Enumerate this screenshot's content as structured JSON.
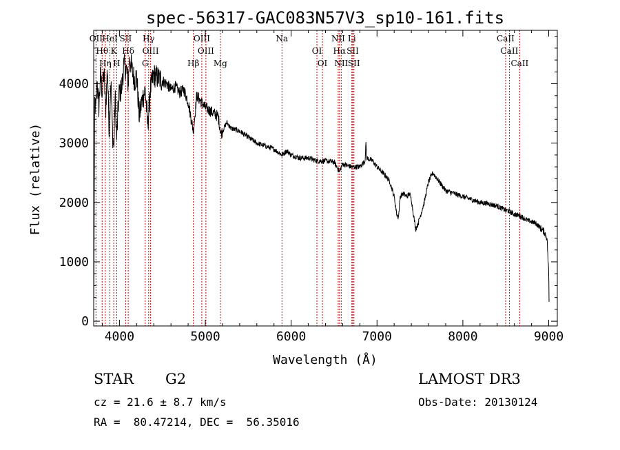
{
  "chart_data": {
    "type": "line",
    "title": "spec-56317-GAC083N57V3_sp10-161.fits",
    "xlabel": "Wavelength (Å)",
    "ylabel": "Flux (relative)",
    "xlim": [
      3700,
      9100
    ],
    "ylim": [
      -80,
      4900
    ],
    "xticks": [
      4000,
      5000,
      6000,
      7000,
      8000,
      9000
    ],
    "yticks": [
      0,
      1000,
      2000,
      3000,
      4000
    ],
    "grid": false,
    "series": [
      {
        "name": "spectrum",
        "anchors": [
          [
            3700,
            200
          ],
          [
            3705,
            1350
          ],
          [
            3712,
            3700
          ],
          [
            3725,
            3550
          ],
          [
            3740,
            4050
          ],
          [
            3760,
            3600
          ],
          [
            3780,
            4150
          ],
          [
            3800,
            3850
          ],
          [
            3820,
            4200
          ],
          [
            3840,
            3550
          ],
          [
            3860,
            4300
          ],
          [
            3880,
            3200
          ],
          [
            3900,
            4100
          ],
          [
            3920,
            3150
          ],
          [
            3935,
            2900
          ],
          [
            3950,
            3800
          ],
          [
            3968,
            3050
          ],
          [
            3985,
            3600
          ],
          [
            4000,
            3900
          ],
          [
            4020,
            3850
          ],
          [
            4050,
            4300
          ],
          [
            4080,
            4250
          ],
          [
            4102,
            4000
          ],
          [
            4120,
            4450
          ],
          [
            4150,
            4200
          ],
          [
            4180,
            4050
          ],
          [
            4200,
            4150
          ],
          [
            4230,
            3450
          ],
          [
            4260,
            3700
          ],
          [
            4300,
            3900
          ],
          [
            4330,
            3300
          ],
          [
            4360,
            3900
          ],
          [
            4400,
            4150
          ],
          [
            4450,
            4100
          ],
          [
            4500,
            4050
          ],
          [
            4550,
            4000
          ],
          [
            4600,
            3900
          ],
          [
            4650,
            3950
          ],
          [
            4700,
            3850
          ],
          [
            4750,
            3900
          ],
          [
            4800,
            3700
          ],
          [
            4861,
            3200
          ],
          [
            4900,
            3800
          ],
          [
            4950,
            3700
          ],
          [
            5000,
            3600
          ],
          [
            5050,
            3550
          ],
          [
            5100,
            3500
          ],
          [
            5150,
            3450
          ],
          [
            5183,
            3150
          ],
          [
            5250,
            3350
          ],
          [
            5300,
            3250
          ],
          [
            5400,
            3200
          ],
          [
            5500,
            3100
          ],
          [
            5600,
            3000
          ],
          [
            5700,
            2950
          ],
          [
            5800,
            2900
          ],
          [
            5893,
            2800
          ],
          [
            5950,
            2870
          ],
          [
            6000,
            2800
          ],
          [
            6100,
            2750
          ],
          [
            6200,
            2750
          ],
          [
            6300,
            2700
          ],
          [
            6400,
            2700
          ],
          [
            6500,
            2680
          ],
          [
            6563,
            2520
          ],
          [
            6600,
            2650
          ],
          [
            6700,
            2600
          ],
          [
            6800,
            2600
          ],
          [
            6860,
            2700
          ],
          [
            6870,
            3000
          ],
          [
            6880,
            2750
          ],
          [
            6950,
            2700
          ],
          [
            7000,
            2600
          ],
          [
            7100,
            2450
          ],
          [
            7150,
            2350
          ],
          [
            7200,
            2100
          ],
          [
            7230,
            1800
          ],
          [
            7250,
            1750
          ],
          [
            7270,
            2100
          ],
          [
            7300,
            2150
          ],
          [
            7350,
            2100
          ],
          [
            7380,
            2150
          ],
          [
            7400,
            2050
          ],
          [
            7430,
            1750
          ],
          [
            7450,
            1550
          ],
          [
            7480,
            1650
          ],
          [
            7500,
            1750
          ],
          [
            7550,
            2000
          ],
          [
            7600,
            2350
          ],
          [
            7650,
            2500
          ],
          [
            7700,
            2400
          ],
          [
            7750,
            2300
          ],
          [
            7800,
            2200
          ],
          [
            7900,
            2150
          ],
          [
            8000,
            2100
          ],
          [
            8100,
            2050
          ],
          [
            8200,
            2000
          ],
          [
            8300,
            1980
          ],
          [
            8400,
            1940
          ],
          [
            8498,
            1870
          ],
          [
            8542,
            1850
          ],
          [
            8600,
            1800
          ],
          [
            8662,
            1780
          ],
          [
            8750,
            1700
          ],
          [
            8850,
            1650
          ],
          [
            8950,
            1500
          ],
          [
            8980,
            1400
          ],
          [
            9000,
            800
          ],
          [
            9005,
            200
          ]
        ]
      }
    ],
    "spectral_lines": [
      {
        "wave": 3727,
        "label": "OII"
      },
      {
        "wave": 3798,
        "label": "Hθ"
      },
      {
        "wave": 3835,
        "label": "Hη"
      },
      {
        "wave": 3889,
        "label": "HeI"
      },
      {
        "wave": 3934,
        "label": "K"
      },
      {
        "wave": 3968,
        "label": "H"
      },
      {
        "wave": 4072,
        "label": "SII"
      },
      {
        "wave": 4102,
        "label": "Hδ"
      },
      {
        "wave": 4300,
        "label": "G"
      },
      {
        "wave": 4340,
        "label": "Hγ"
      },
      {
        "wave": 4363,
        "label": "OIII"
      },
      {
        "wave": 4861,
        "label": "Hβ"
      },
      {
        "wave": 4959,
        "label": "OIII"
      },
      {
        "wave": 5007,
        "label": "OIII"
      },
      {
        "wave": 5175,
        "label": "Mg"
      },
      {
        "wave": 5893,
        "label": "Na"
      },
      {
        "wave": 6300,
        "label": "OI"
      },
      {
        "wave": 6364,
        "label": "OI"
      },
      {
        "wave": 6548,
        "label": "NII"
      },
      {
        "wave": 6563,
        "label": "Hα"
      },
      {
        "wave": 6583,
        "label": "NII"
      },
      {
        "wave": 6707,
        "label": "Li"
      },
      {
        "wave": 6717,
        "label": "SII"
      },
      {
        "wave": 6731,
        "label": "SII"
      },
      {
        "wave": 8498,
        "label": "CaII"
      },
      {
        "wave": 8542,
        "label": "CaII"
      },
      {
        "wave": 8662,
        "label": "CaII"
      }
    ]
  },
  "info": {
    "class_label": "STAR",
    "subclass": "G2",
    "survey": "LAMOST DR3",
    "redshift_line": "cz = 21.6 ± 8.7 km/s",
    "obs_date_line": "Obs-Date: 20130124",
    "coords_line": "RA =  80.47214, DEC =  56.35016"
  }
}
